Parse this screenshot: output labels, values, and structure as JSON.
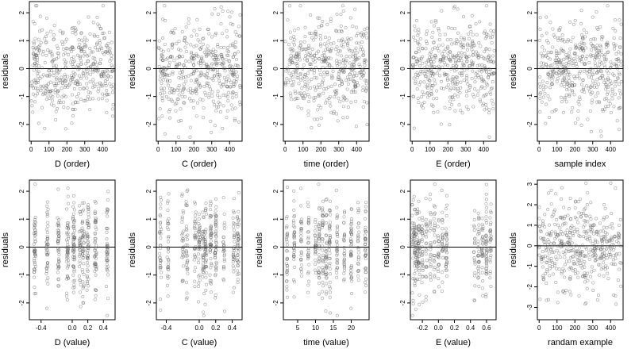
{
  "chart_data": [
    {
      "type": "scatter",
      "xlabel": "D (order)",
      "ylabel": "residuals",
      "xlim": [
        -10,
        470
      ],
      "ylim": [
        -2.6,
        2.4
      ],
      "xticks": [
        0,
        100,
        200,
        300,
        400
      ],
      "yticks": [
        -2,
        -1,
        0,
        1,
        2
      ],
      "reference_line_y": 0,
      "marker": "open-circle",
      "n_points": 450,
      "x_kind": "index",
      "seed": 11
    },
    {
      "type": "scatter",
      "xlabel": "C (order)",
      "ylabel": "residuals",
      "xlim": [
        -10,
        470
      ],
      "ylim": [
        -2.6,
        2.4
      ],
      "xticks": [
        0,
        100,
        200,
        300,
        400
      ],
      "yticks": [
        -2,
        -1,
        0,
        1,
        2
      ],
      "reference_line_y": 0,
      "marker": "open-circle",
      "n_points": 450,
      "x_kind": "index",
      "seed": 23
    },
    {
      "type": "scatter",
      "xlabel": "time (order)",
      "ylabel": "residuals",
      "xlim": [
        -10,
        470
      ],
      "ylim": [
        -2.6,
        2.4
      ],
      "xticks": [
        0,
        100,
        200,
        300,
        400
      ],
      "yticks": [
        -2,
        -1,
        0,
        1,
        2
      ],
      "reference_line_y": 0,
      "marker": "open-circle",
      "n_points": 450,
      "x_kind": "index",
      "seed": 37
    },
    {
      "type": "scatter",
      "xlabel": "E (order)",
      "ylabel": "residuals",
      "xlim": [
        -10,
        470
      ],
      "ylim": [
        -2.6,
        2.4
      ],
      "xticks": [
        0,
        100,
        200,
        300,
        400
      ],
      "yticks": [
        -2,
        -1,
        0,
        1,
        2
      ],
      "reference_line_y": 0,
      "marker": "open-circle",
      "n_points": 450,
      "x_kind": "index",
      "seed": 41
    },
    {
      "type": "scatter",
      "xlabel": "sample index",
      "ylabel": "residuals",
      "xlim": [
        -10,
        470
      ],
      "ylim": [
        -2.6,
        2.4
      ],
      "xticks": [
        0,
        100,
        200,
        300,
        400
      ],
      "yticks": [
        -2,
        -1,
        0,
        1,
        2
      ],
      "reference_line_y": 0,
      "marker": "open-circle",
      "n_points": 450,
      "x_kind": "index",
      "seed": 53
    },
    {
      "type": "scatter",
      "xlabel": "D (value)",
      "ylabel": "residuals",
      "xlim": [
        -0.55,
        0.55
      ],
      "ylim": [
        -2.6,
        2.4
      ],
      "xticks": [
        -0.4,
        0.0,
        0.2,
        0.4
      ],
      "xticklabels": [
        "-0.4",
        "0.0",
        "0.2",
        "0.4"
      ],
      "yticks": [
        -2,
        -1,
        0,
        1,
        2
      ],
      "reference_line_y": 0,
      "marker": "open-circle",
      "n_points": 450,
      "x_kind": "clustered",
      "x_clusters": [
        -0.48,
        -0.32,
        -0.18,
        -0.06,
        0.02,
        0.1,
        0.14,
        0.2,
        0.3,
        0.45
      ],
      "x_jitter": 0.012,
      "seed": 61
    },
    {
      "type": "scatter",
      "xlabel": "C (value)",
      "ylabel": "residuals",
      "xlim": [
        -0.52,
        0.52
      ],
      "ylim": [
        -2.6,
        2.4
      ],
      "xticks": [
        -0.4,
        0.0,
        0.2,
        0.4
      ],
      "xticklabels": [
        "-0.4",
        "0.0",
        "0.2",
        "0.4"
      ],
      "yticks": [
        -2,
        -1,
        0,
        1,
        2
      ],
      "reference_line_y": 0,
      "marker": "open-circle",
      "n_points": 450,
      "x_kind": "clustered",
      "x_clusters": [
        -0.47,
        -0.38,
        -0.2,
        -0.15,
        -0.05,
        0.0,
        0.05,
        0.08,
        0.14,
        0.2,
        0.3,
        0.42,
        0.47
      ],
      "x_jitter": 0.01,
      "seed": 71
    },
    {
      "type": "scatter",
      "xlabel": "time (value)",
      "ylabel": "residuals",
      "xlim": [
        1,
        25
      ],
      "ylim": [
        -2.6,
        2.4
      ],
      "xticks": [
        5,
        10,
        15,
        20
      ],
      "yticks": [
        -2,
        -1,
        0,
        1,
        2
      ],
      "reference_line_y": 0,
      "marker": "open-circle",
      "n_points": 450,
      "x_kind": "clustered",
      "x_clusters": [
        2,
        4,
        6,
        8,
        10,
        11,
        12,
        13,
        14,
        16,
        18,
        20,
        22,
        24
      ],
      "x_jitter": 0.15,
      "seed": 83
    },
    {
      "type": "scatter",
      "xlabel": "E (value)",
      "ylabel": "residuals",
      "xlim": [
        -0.35,
        0.72
      ],
      "ylim": [
        -2.6,
        2.4
      ],
      "xticks": [
        -0.2,
        0.0,
        0.2,
        0.4,
        0.6
      ],
      "xticklabels": [
        "-0.2",
        "0.0",
        "0.2",
        "0.4",
        "0.6"
      ],
      "yticks": [
        -2,
        -1,
        0,
        1,
        2
      ],
      "reference_line_y": 0,
      "marker": "open-circle",
      "n_points": 450,
      "x_kind": "clustered",
      "x_clusters": [
        -0.32,
        -0.3,
        -0.28,
        -0.26,
        -0.24,
        -0.2,
        -0.15,
        -0.1,
        -0.05,
        0.0,
        0.05,
        0.1,
        0.45,
        0.5,
        0.55,
        0.6,
        0.65
      ],
      "x_jitter": 0.008,
      "seed": 97
    },
    {
      "type": "scatter",
      "xlabel": "randam example",
      "ylabel": "residuals",
      "xlim": [
        -10,
        470
      ],
      "ylim": [
        -3.6,
        3.2
      ],
      "xticks": [
        0,
        100,
        200,
        300,
        400
      ],
      "yticks": [
        -3,
        -2,
        -1,
        0,
        1,
        2,
        3
      ],
      "reference_line_y": 0,
      "marker": "open-circle",
      "n_points": 450,
      "x_kind": "index",
      "spread": 1.1,
      "seed": 101
    }
  ]
}
